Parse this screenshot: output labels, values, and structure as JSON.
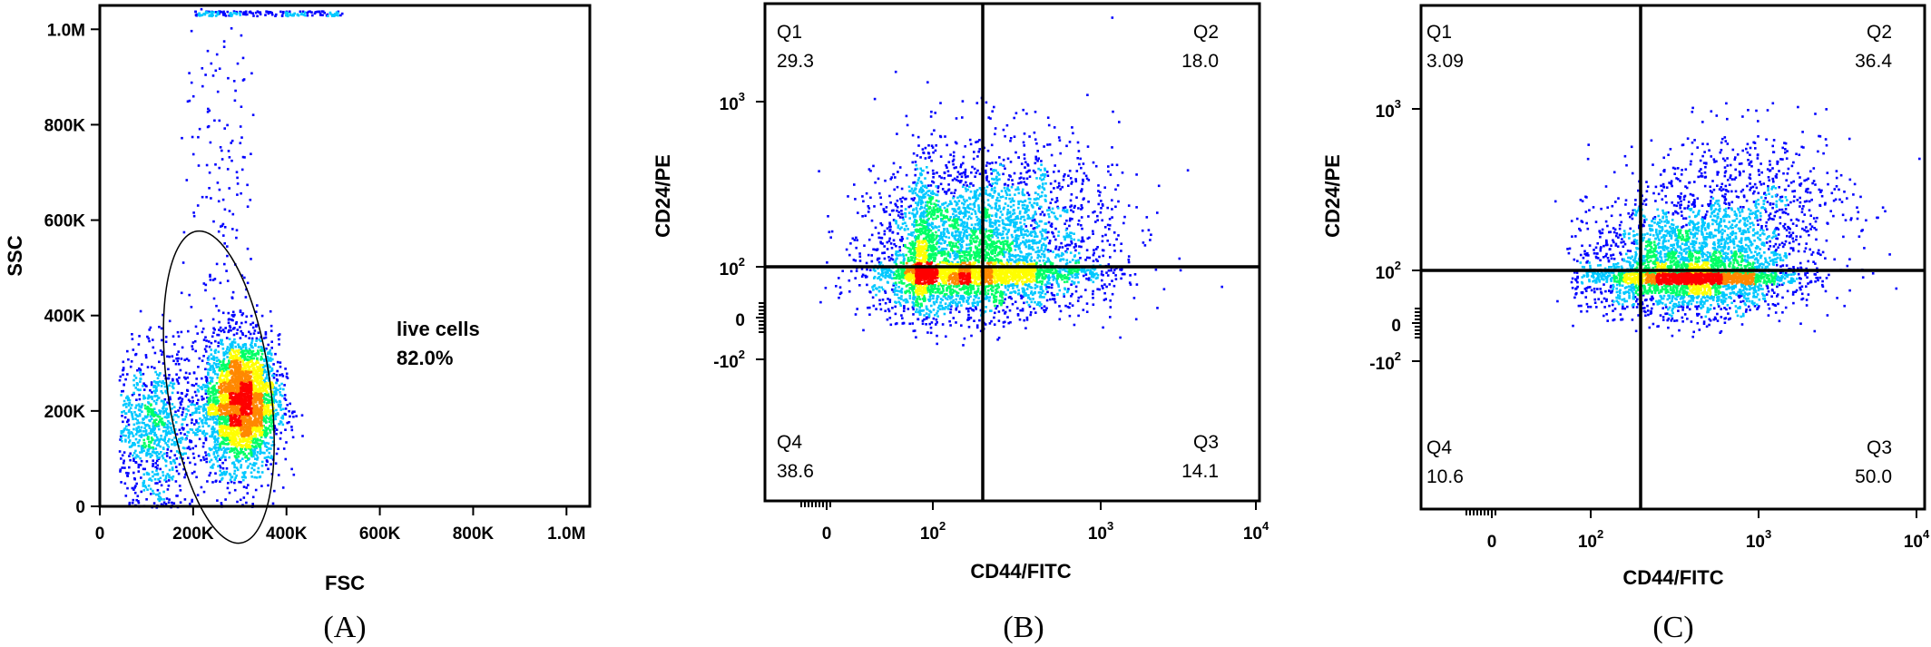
{
  "chart_data": [
    {
      "panel_label": "(A)",
      "type": "scatter",
      "xlabel": "FSC",
      "ylabel": "SSC",
      "xlim": [
        0,
        1050000
      ],
      "ylim": [
        0,
        1050000
      ],
      "x_ticks": [
        {
          "value": 0,
          "label": "0"
        },
        {
          "value": 200000,
          "label": "200K"
        },
        {
          "value": 400000,
          "label": "400K"
        },
        {
          "value": 600000,
          "label": "600K"
        },
        {
          "value": 800000,
          "label": "800K"
        },
        {
          "value": 1000000,
          "label": "1.0M"
        }
      ],
      "y_ticks": [
        {
          "value": 0,
          "label": "0"
        },
        {
          "value": 200000,
          "label": "200K"
        },
        {
          "value": 400000,
          "label": "400K"
        },
        {
          "value": 600000,
          "label": "600K"
        },
        {
          "value": 800000,
          "label": "800K"
        },
        {
          "value": 1000000,
          "label": "1.0M"
        }
      ],
      "gate": {
        "name": "live cells",
        "percent": "82.0%",
        "center": [
          255000,
          250000
        ],
        "rx": 110000,
        "ry": 330000
      },
      "populations": [
        {
          "x": 300000,
          "y": 220000,
          "sx": 40000,
          "sy": 70000,
          "count": 3000
        },
        {
          "x": 120000,
          "y": 170000,
          "sx": 45000,
          "sy": 80000,
          "count": 900
        },
        {
          "x": 260000,
          "y": 650000,
          "sx": 40000,
          "sy": 220000,
          "count": 160
        }
      ],
      "color_scale": [
        "#0000ff",
        "#00c8ff",
        "#00ff66",
        "#ffff00",
        "#ff8800",
        "#ff0000"
      ]
    },
    {
      "panel_label": "(B)",
      "type": "scatter",
      "xlabel": "CD44/FITC",
      "ylabel": "CD24/PE",
      "scale": "biexponential",
      "x_ticks": [
        {
          "value": 0,
          "base": "0",
          "exp": ""
        },
        {
          "value": 100,
          "base": "10",
          "exp": "2"
        },
        {
          "value": 1000,
          "base": "10",
          "exp": "3"
        },
        {
          "value": 10000,
          "base": "10",
          "exp": "4"
        }
      ],
      "y_ticks": [
        {
          "value": -100,
          "base": "-10",
          "exp": "2"
        },
        {
          "value": 0,
          "base": "0",
          "exp": ""
        },
        {
          "value": 100,
          "base": "10",
          "exp": "2"
        },
        {
          "value": 1000,
          "base": "10",
          "exp": "3"
        }
      ],
      "quadrant_gate": {
        "x": 200,
        "y": 100
      },
      "quadrants": [
        {
          "name": "Q1",
          "value": "29.3"
        },
        {
          "name": "Q2",
          "value": "18.0"
        },
        {
          "name": "Q3",
          "value": "14.1"
        },
        {
          "name": "Q4",
          "value": "38.6"
        }
      ],
      "populations": [
        {
          "x": 140,
          "y": 90,
          "sx_log": 0.38,
          "sy_log": 0.3,
          "count": 3800
        },
        {
          "x": 250,
          "y": 170,
          "sx_log": 0.35,
          "sy_log": 0.3,
          "count": 1200
        }
      ],
      "color_scale": [
        "#0000ff",
        "#00c8ff",
        "#00ff66",
        "#ffff00",
        "#ff8800",
        "#ff0000"
      ]
    },
    {
      "panel_label": "(C)",
      "type": "scatter",
      "xlabel": "CD44/FITC",
      "ylabel": "CD24/PE",
      "scale": "biexponential",
      "x_ticks": [
        {
          "value": 0,
          "base": "0",
          "exp": ""
        },
        {
          "value": 100,
          "base": "10",
          "exp": "2"
        },
        {
          "value": 1000,
          "base": "10",
          "exp": "3"
        },
        {
          "value": 10000,
          "base": "10",
          "exp": "4"
        }
      ],
      "y_ticks": [
        {
          "value": -100,
          "base": "-10",
          "exp": "2"
        },
        {
          "value": 0,
          "base": "0",
          "exp": ""
        },
        {
          "value": 100,
          "base": "10",
          "exp": "2"
        },
        {
          "value": 1000,
          "base": "10",
          "exp": "3"
        }
      ],
      "quadrant_gate": {
        "x": 200,
        "y": 100
      },
      "quadrants": [
        {
          "name": "Q1",
          "value": "3.09"
        },
        {
          "name": "Q2",
          "value": "36.4"
        },
        {
          "name": "Q3",
          "value": "50.0"
        },
        {
          "name": "Q4",
          "value": "10.6"
        }
      ],
      "populations": [
        {
          "x": 380,
          "y": 85,
          "sx_log": 0.3,
          "sy_log": 0.24,
          "count": 3600
        },
        {
          "x": 900,
          "y": 250,
          "sx_log": 0.32,
          "sy_log": 0.25,
          "count": 700
        }
      ],
      "color_scale": [
        "#0000ff",
        "#00c8ff",
        "#00ff66",
        "#ffff00",
        "#ff8800",
        "#ff0000"
      ]
    }
  ]
}
